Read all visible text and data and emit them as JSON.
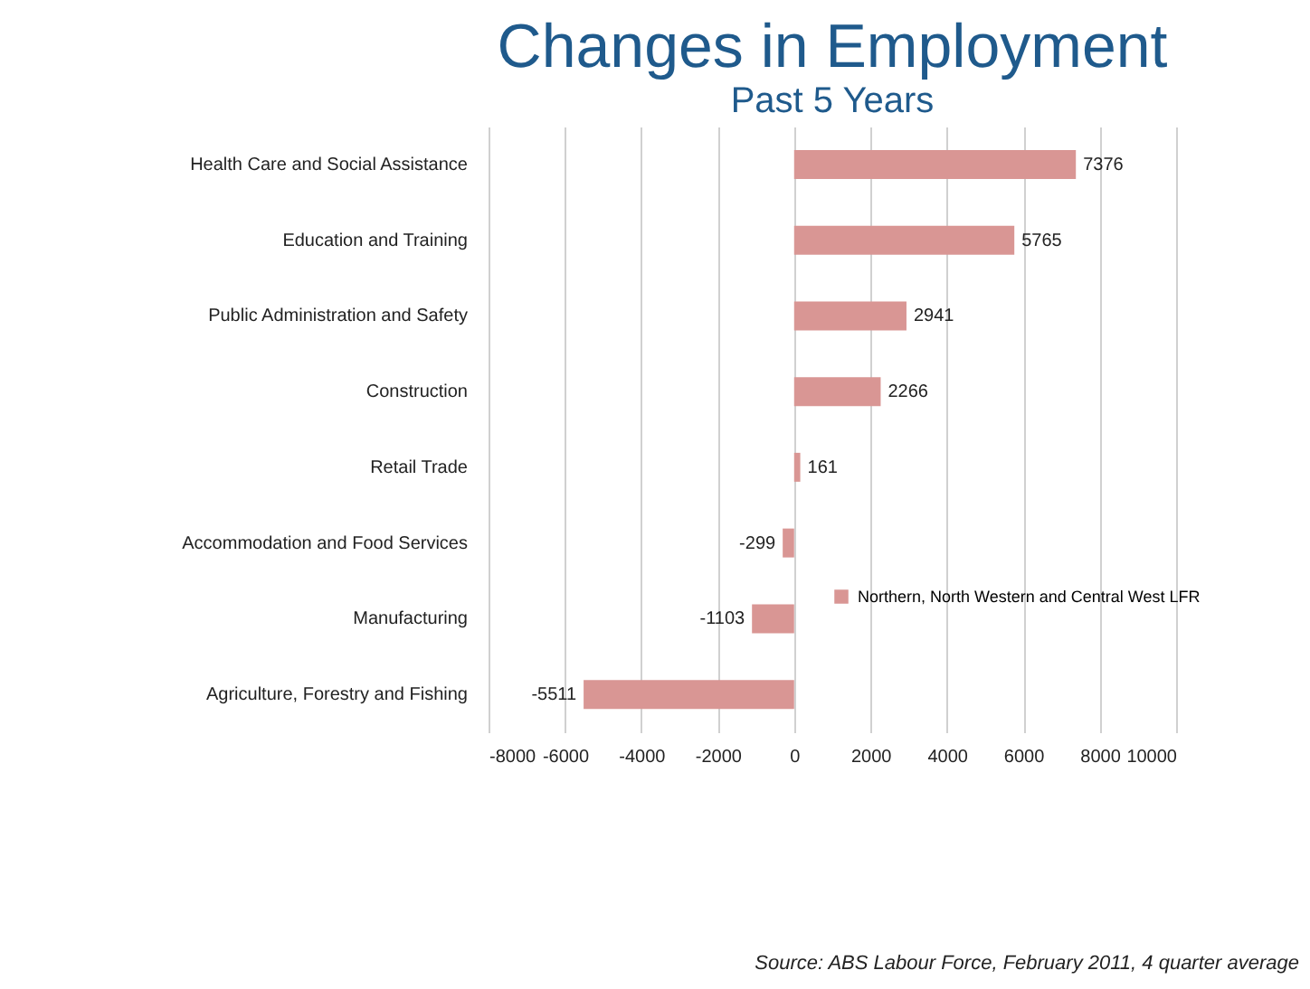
{
  "chart_data": {
    "type": "bar",
    "orientation": "horizontal",
    "title": "Changes in Employment",
    "subtitle": "Past 5 Years",
    "categories": [
      "Health Care and Social Assistance",
      "Education and Training",
      "Public Administration and Safety",
      "Construction",
      "Retail Trade",
      "Accommodation and Food Services",
      "Manufacturing",
      "Agriculture, Forestry and Fishing"
    ],
    "series": [
      {
        "name": "Northern, North Western and Central West LFR",
        "color": "#d99694",
        "values": [
          7376,
          5765,
          2941,
          2266,
          161,
          -299,
          -1103,
          -5511
        ]
      }
    ],
    "xlim": [
      -8000,
      10000
    ],
    "xticks": [
      -8000,
      -6000,
      -4000,
      -2000,
      0,
      2000,
      4000,
      6000,
      8000,
      10000
    ],
    "grid": "x",
    "legend": "right",
    "data_labels": true,
    "annotations": [
      "Source: ABS Labour Force, February 2011, 4 quarter average"
    ]
  }
}
